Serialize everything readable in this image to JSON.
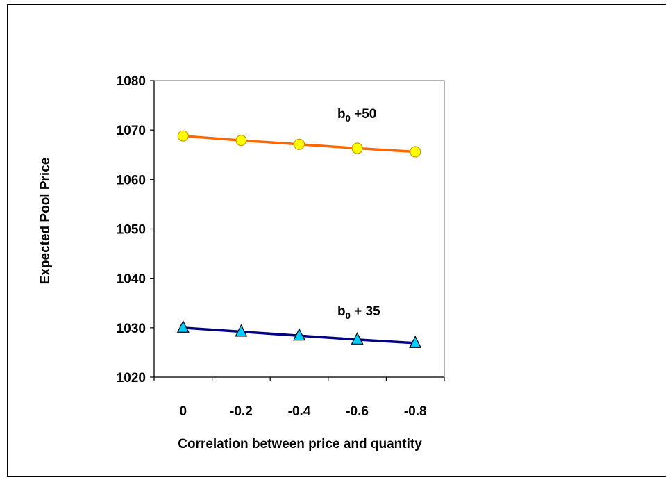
{
  "chart_data": {
    "type": "line",
    "title": "",
    "xlabel": "Correlation between price and quantity",
    "ylabel": "Expected Pool Price",
    "categories": [
      "0",
      "-0.2",
      "-0.4",
      "-0.6",
      "-0.8"
    ],
    "ylim": [
      1020,
      1080
    ],
    "yticks": [
      "1020",
      "1030",
      "1040",
      "1050",
      "1060",
      "1070",
      "1080"
    ],
    "grid": false,
    "series": [
      {
        "label_base": "b",
        "label_sub": "0",
        "label_rest": " +50",
        "values": [
          1068.8,
          1067.9,
          1067.1,
          1066.3,
          1065.6
        ],
        "line_color": "#FF6600",
        "marker": "circle",
        "marker_fill": "#FFFF00",
        "marker_stroke": "#CC9900"
      },
      {
        "label_base": "b",
        "label_sub": "0",
        "label_rest": " + 35",
        "values": [
          1030.0,
          1029.2,
          1028.4,
          1027.6,
          1026.9
        ],
        "line_color": "#000080",
        "marker": "triangle",
        "marker_fill": "#00CCFF",
        "marker_stroke": "#000000"
      }
    ]
  }
}
